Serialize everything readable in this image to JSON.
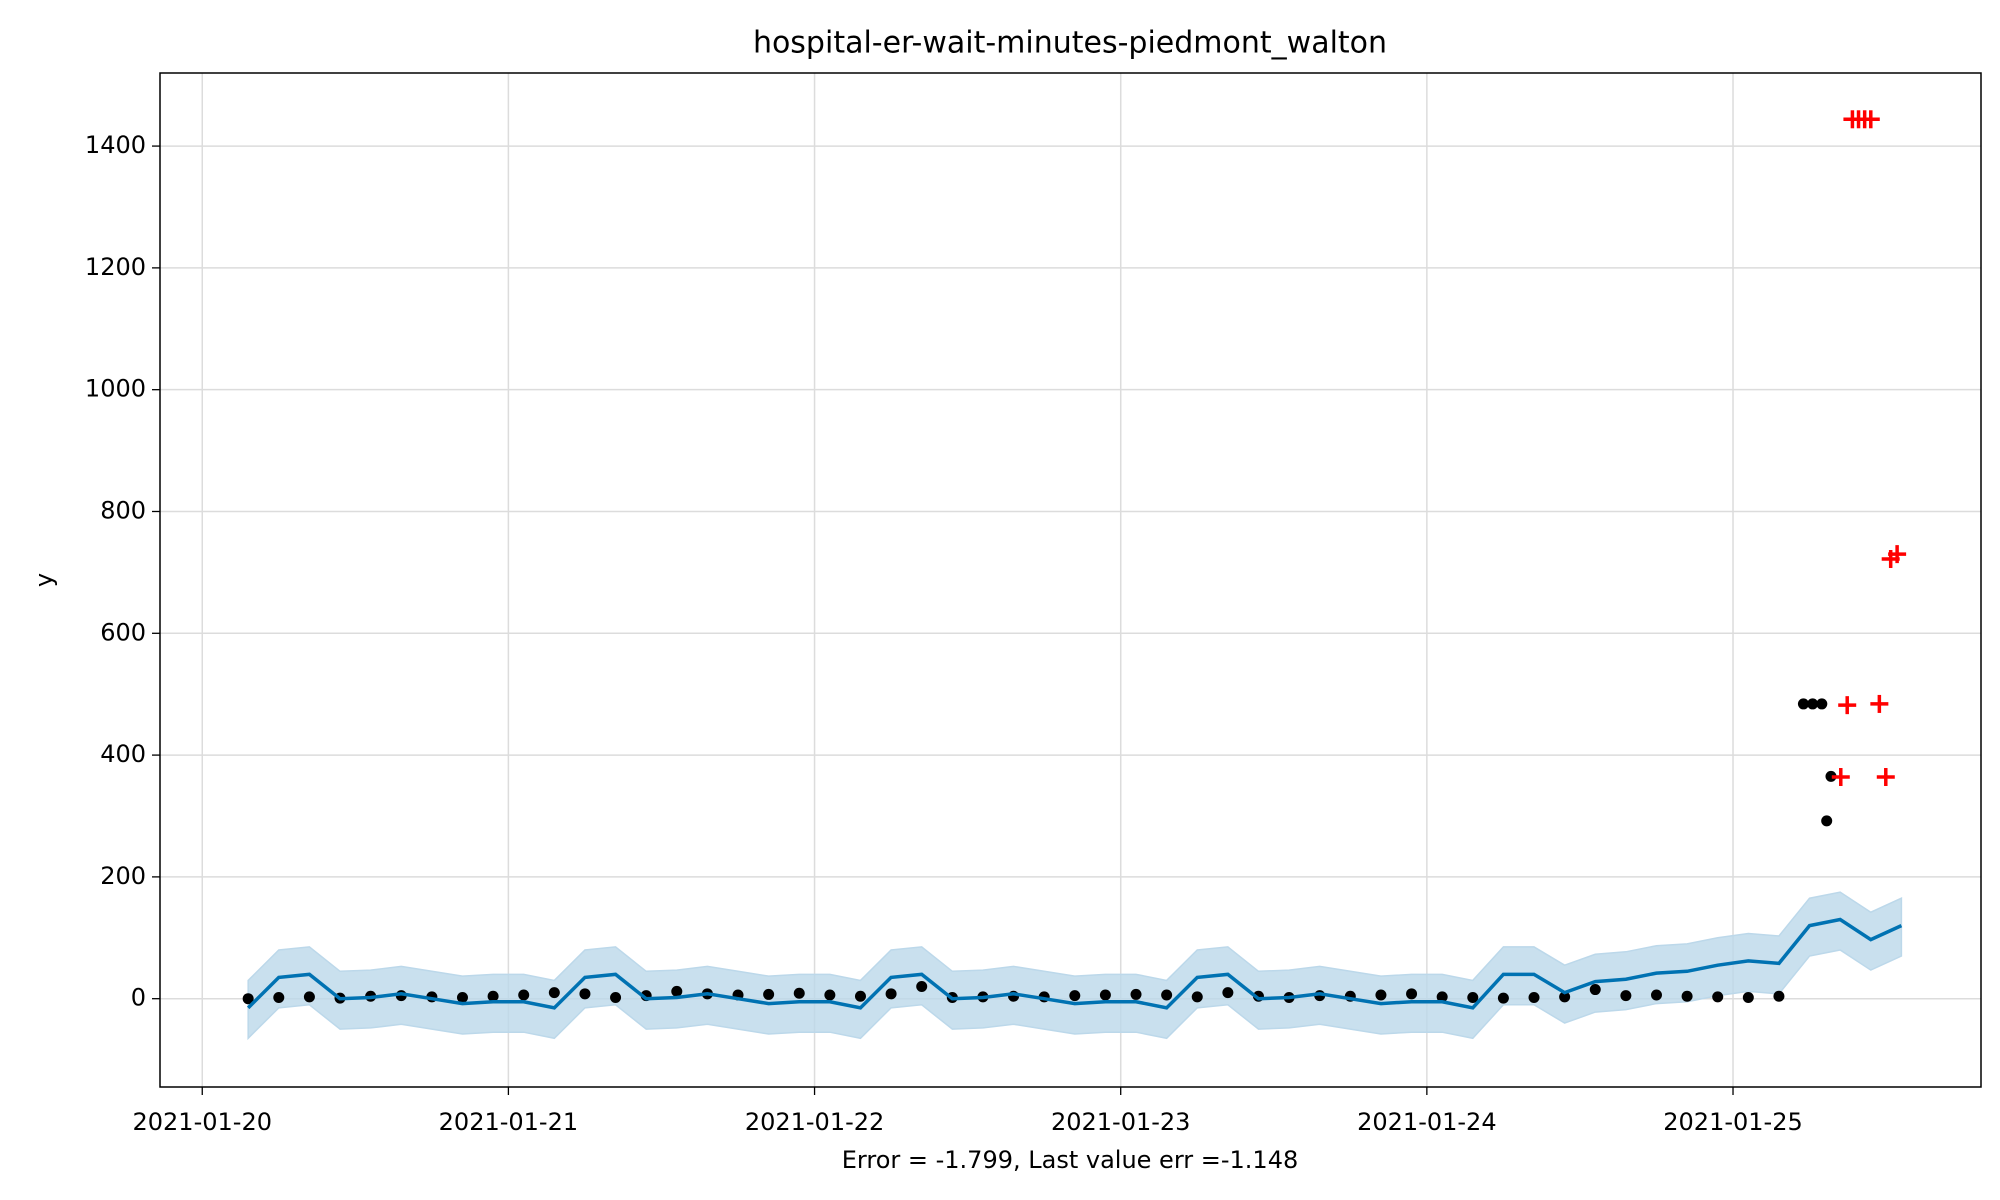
{
  "chart_data": {
    "type": "forecast",
    "title": "hospital-er-wait-minutes-piedmont_walton",
    "xlabel": "Error = -1.799, Last value err =-1.148",
    "ylabel": "y",
    "xlim": [
      -0.138,
      5.81
    ],
    "ylim": [
      -145,
      1520
    ],
    "xticks": [
      {
        "value": 0,
        "label": "2021-01-20"
      },
      {
        "value": 1,
        "label": "2021-01-21"
      },
      {
        "value": 2,
        "label": "2021-01-22"
      },
      {
        "value": 3,
        "label": "2021-01-23"
      },
      {
        "value": 4,
        "label": "2021-01-24"
      },
      {
        "value": 5,
        "label": "2021-01-25"
      }
    ],
    "yticks": [
      0,
      200,
      400,
      600,
      800,
      1000,
      1200,
      1400
    ],
    "grid": true,
    "forecast": {
      "color": "#0072b2",
      "band_color": "#bcd8ea",
      "x": [
        0.15,
        0.25,
        0.35,
        0.45,
        0.55,
        0.65,
        0.75,
        0.85,
        0.95,
        1.05,
        1.15,
        1.25,
        1.35,
        1.45,
        1.55,
        1.65,
        1.75,
        1.85,
        1.95,
        2.05,
        2.15,
        2.25,
        2.35,
        2.45,
        2.55,
        2.65,
        2.75,
        2.85,
        2.95,
        3.05,
        3.15,
        3.25,
        3.35,
        3.45,
        3.55,
        3.65,
        3.75,
        3.85,
        3.95,
        4.05,
        4.15,
        4.25,
        4.35,
        4.45,
        4.55,
        4.65,
        4.75,
        4.85,
        4.95,
        5.05,
        5.15,
        5.25,
        5.35,
        5.45,
        5.55
      ],
      "values": [
        -15,
        35,
        40,
        0,
        2,
        8,
        0,
        -8,
        -5,
        -5,
        -15,
        35,
        40,
        0,
        2,
        8,
        0,
        -8,
        -5,
        -5,
        -15,
        35,
        40,
        0,
        2,
        8,
        0,
        -8,
        -5,
        -5,
        -15,
        35,
        40,
        0,
        2,
        8,
        0,
        -8,
        -5,
        -5,
        -15,
        40,
        40,
        10,
        28,
        32,
        42,
        45,
        55,
        62,
        58,
        120,
        130,
        97,
        120
      ],
      "upper": [
        30,
        80,
        85,
        45,
        47,
        53,
        45,
        37,
        40,
        40,
        30,
        80,
        85,
        45,
        47,
        53,
        45,
        37,
        40,
        40,
        30,
        80,
        85,
        45,
        47,
        53,
        45,
        37,
        40,
        40,
        30,
        80,
        85,
        45,
        47,
        53,
        45,
        37,
        40,
        40,
        30,
        85,
        85,
        55,
        73,
        77,
        87,
        90,
        100,
        107,
        103,
        165,
        175,
        142,
        165
      ],
      "lower": [
        -65,
        -15,
        -10,
        -50,
        -48,
        -42,
        -50,
        -58,
        -55,
        -55,
        -65,
        -15,
        -10,
        -50,
        -48,
        -42,
        -50,
        -58,
        -55,
        -55,
        -65,
        -15,
        -10,
        -50,
        -48,
        -42,
        -50,
        -58,
        -55,
        -55,
        -65,
        -15,
        -10,
        -50,
        -48,
        -42,
        -50,
        -58,
        -55,
        -55,
        -65,
        -10,
        -10,
        -40,
        -22,
        -18,
        -8,
        -5,
        5,
        12,
        8,
        70,
        80,
        47,
        70
      ]
    },
    "observed": {
      "color": "#000000",
      "x": [
        0.15,
        0.25,
        0.35,
        0.45,
        0.55,
        0.65,
        0.75,
        0.85,
        0.95,
        1.05,
        1.15,
        1.25,
        1.35,
        1.45,
        1.55,
        1.65,
        1.75,
        1.85,
        1.95,
        2.05,
        2.15,
        2.25,
        2.35,
        2.45,
        2.55,
        2.65,
        2.75,
        2.85,
        2.95,
        3.05,
        3.15,
        3.25,
        3.35,
        3.45,
        3.55,
        3.65,
        3.75,
        3.85,
        3.95,
        4.05,
        4.15,
        4.25,
        4.35,
        4.45,
        4.55,
        4.65,
        4.75,
        4.85,
        4.95,
        5.05,
        5.15,
        5.23,
        5.26,
        5.29,
        5.306,
        5.32
      ],
      "values": [
        0,
        2,
        3,
        1,
        4,
        5,
        3,
        2,
        4,
        6,
        10,
        8,
        2,
        5,
        12,
        8,
        6,
        7,
        9,
        6,
        4,
        8,
        20,
        2,
        3,
        4,
        3,
        5,
        6,
        7,
        6,
        3,
        10,
        4,
        2,
        5,
        4,
        6,
        8,
        3,
        2,
        1,
        2,
        3,
        15,
        5,
        6,
        4,
        3,
        2,
        4,
        484,
        484,
        484,
        292,
        365
      ]
    },
    "anomalies": {
      "color": "#ff0000",
      "x": [
        5.352,
        5.373,
        5.39,
        5.41,
        5.43,
        5.45,
        5.478,
        5.499,
        5.515,
        5.536
      ],
      "values": [
        364,
        482,
        1444,
        1444,
        1444,
        1444,
        484,
        364,
        722,
        730
      ]
    }
  }
}
